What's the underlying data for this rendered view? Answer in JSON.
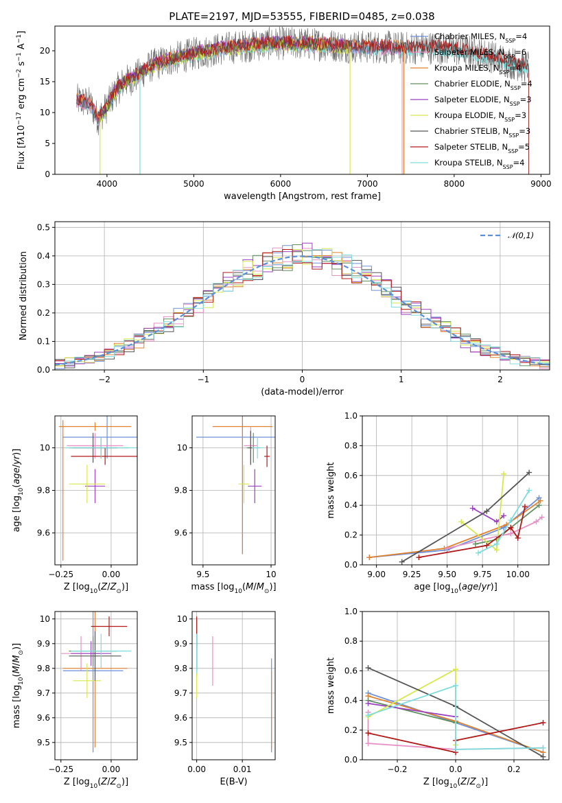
{
  "title": "PLATE=2197, MJD=53555, FIBERID=0485, z=0.038",
  "colors": {
    "Chabrier MILES": "#6e8fd8",
    "Salpeter MILES": "#e88fc5",
    "Kroupa MILES": "#e0812f",
    "Chabrier ELODIE": "#5f8f5f",
    "Salpeter ELODIE": "#9a40c0",
    "Kroupa ELODIE": "#d6e84a",
    "Chabrier STELIB": "#555555",
    "Salpeter STELIB": "#b01818",
    "Kroupa STELIB": "#7fdcdc"
  },
  "legend": [
    {
      "name": "Chabrier MILES",
      "nssp": "4"
    },
    {
      "name": "Salpeter MILES",
      "nssp": "6"
    },
    {
      "name": "Kroupa MILES",
      "nssp": "4"
    },
    {
      "name": "Chabrier ELODIE",
      "nssp": "4"
    },
    {
      "name": "Salpeter ELODIE",
      "nssp": "3"
    },
    {
      "name": "Kroupa ELODIE",
      "nssp": "3"
    },
    {
      "name": "Chabrier STELIB",
      "nssp": "3"
    },
    {
      "name": "Salpeter STELIB",
      "nssp": "5"
    },
    {
      "name": "Kroupa STELIB",
      "nssp": "4"
    }
  ],
  "chart_data": [
    {
      "id": "spectrum",
      "type": "line",
      "xlabel": "wavelength [Angstrom, rest frame]",
      "ylabel_html": "Flux [f<tspan font-style='italic'>λ</tspan>10<tspan baseline-shift='super' font-size='9'>−17</tspan> erg cm<tspan baseline-shift='super' font-size='9'>−2</tspan> s<tspan baseline-shift='super' font-size='9'>−1</tspan> A<tspan baseline-shift='super' font-size='9'>−1</tspan>]",
      "xlim": [
        3400,
        9100
      ],
      "ylim": [
        0,
        24
      ],
      "xticks": [
        4000,
        5000,
        6000,
        7000,
        8000,
        9000
      ],
      "yticks": [
        0,
        5,
        10,
        15,
        20
      ],
      "grid": false,
      "legend_position": "top-right",
      "continuum_x": [
        3650,
        3800,
        3900,
        4000,
        4100,
        4200,
        4300,
        4500,
        4700,
        5000,
        5300,
        5600,
        5900,
        6200,
        6500,
        6800,
        7000,
        7200,
        7400,
        7600,
        7800,
        8000,
        8200,
        8400,
        8600,
        8800
      ],
      "continuum_y": [
        12,
        11.5,
        9,
        11,
        13.5,
        15,
        15.5,
        17.5,
        18.5,
        19.5,
        20.3,
        20.8,
        21.2,
        21.2,
        21,
        20.7,
        20.6,
        20.6,
        20.4,
        20.5,
        20.5,
        20.2,
        19.8,
        19.2,
        18.3,
        17.5
      ],
      "model_ranges": {
        "Chabrier MILES": [
          3650,
          7400
        ],
        "Salpeter MILES": [
          3650,
          7400
        ],
        "Kroupa MILES": [
          3650,
          7400
        ],
        "Chabrier ELODIE": [
          3900,
          6800
        ],
        "Salpeter ELODIE": [
          3900,
          6800
        ],
        "Kroupa ELODIE": [
          3900,
          6800
        ],
        "Chabrier STELIB": [
          3650,
          8860
        ],
        "Salpeter STELIB": [
          3650,
          8860
        ],
        "Kroupa STELIB": [
          3650,
          8860
        ]
      }
    },
    {
      "id": "residuals",
      "type": "histogram",
      "xlabel": "(data-model)/error",
      "ylabel": "Normed distribution",
      "xlim": [
        -2.5,
        2.5
      ],
      "ylim": [
        0,
        0.52
      ],
      "xticks": [
        -2,
        -1,
        0,
        1,
        2
      ],
      "yticks": [
        0.0,
        0.1,
        0.2,
        0.3,
        0.4,
        0.5
      ],
      "grid": true,
      "legend_position": "top-right",
      "reference_curve": "𝒩(0,1)",
      "bin_width": 0.1
    },
    {
      "id": "age_vs_Z",
      "type": "scatter",
      "xlabel_html": "Z [log<tspan baseline-shift='sub' font-size='9'>10</tspan>(<tspan font-style='italic'>Z</tspan>/<tspan font-style='italic'>Z</tspan><tspan baseline-shift='sub' font-size='9'>⊙</tspan>)]",
      "ylabel_html": "age  [log<tspan baseline-shift='sub' font-size='9'>10</tspan>(<tspan font-style='italic'>age</tspan>/<tspan font-style='italic'>yr</tspan>)]",
      "xlim": [
        -0.28,
        0.13
      ],
      "ylim": [
        9.45,
        10.15
      ],
      "xticks": [
        -0.25,
        0.0
      ],
      "xtick_labels": [
        "−0.25",
        "0.00"
      ],
      "yticks": [
        9.6,
        9.8,
        10.0
      ],
      "grid": true,
      "points": [
        {
          "m": "Chabrier MILES",
          "x": -0.02,
          "xe": 0.22,
          "y": 10.05,
          "ye": 0.1
        },
        {
          "m": "Salpeter MILES",
          "x": -0.08,
          "xe": 0.14,
          "y": 10.01,
          "ye": 0.06
        },
        {
          "m": "Kroupa MILES",
          "x": -0.08,
          "xe": 0.18,
          "y": 10.1,
          "ye": 0.02
        },
        {
          "m": "Chabrier ELODIE",
          "x": -0.05,
          "xe": 0.14,
          "y": 10.0,
          "ye": 0.05
        },
        {
          "m": "Salpeter ELODIE",
          "x": -0.08,
          "xe": 0.05,
          "y": 9.82,
          "ye": 0.08
        },
        {
          "m": "Kroupa ELODIE",
          "x": -0.12,
          "xe": 0.09,
          "y": 9.83,
          "ye": 0.09
        },
        {
          "m": "Chabrier STELIB",
          "x": -0.09,
          "xe": 0.12,
          "y": 10.0,
          "ye": 0.07
        },
        {
          "m": "Salpeter STELIB",
          "x": -0.03,
          "xe": 0.17,
          "y": 9.96,
          "ye": 0.04
        },
        {
          "m": "Kroupa STELIB",
          "x": -0.05,
          "xe": 0.18,
          "y": 10.0,
          "ye": 0.05
        },
        {
          "m": "Kroupa MILES",
          "x": -0.24,
          "xe": 0.0,
          "y": 9.8,
          "ye": 0.33
        }
      ]
    },
    {
      "id": "age_vs_mass",
      "type": "scatter",
      "xlabel_html": "mass [log<tspan baseline-shift='sub' font-size='9'>10</tspan>(<tspan font-style='italic'>M</tspan>/<tspan font-style='italic'>M</tspan><tspan baseline-shift='sub' font-size='9'>⊙</tspan>)]",
      "xlim": [
        9.42,
        10.03
      ],
      "ylim": [
        9.45,
        10.15
      ],
      "xticks": [
        9.5,
        10.0
      ],
      "yticks": [
        9.6,
        9.8,
        10.0
      ],
      "grid": true,
      "points": [
        {
          "m": "Chabrier MILES",
          "x": 9.79,
          "xe": 0.34,
          "y": 10.05,
          "ye": 0.55
        },
        {
          "m": "Kroupa MILES",
          "x": 9.79,
          "xe": 0.22,
          "y": 10.1,
          "ye": 0.6
        },
        {
          "m": "Salpeter MILES",
          "x": 9.85,
          "xe": 0.05,
          "y": 10.01,
          "ye": 0.09
        },
        {
          "m": "Chabrier ELODIE",
          "x": 9.87,
          "xe": 0.05,
          "y": 10.0,
          "ye": 0.07
        },
        {
          "m": "Salpeter ELODIE",
          "x": 9.88,
          "xe": 0.05,
          "y": 9.82,
          "ye": 0.08
        },
        {
          "m": "Kroupa ELODIE",
          "x": 9.8,
          "xe": 0.04,
          "y": 9.83,
          "ye": 0.09
        },
        {
          "m": "Chabrier STELIB",
          "x": 9.85,
          "xe": 0.02,
          "y": 10.0,
          "ye": 0.08
        },
        {
          "m": "Salpeter STELIB",
          "x": 9.97,
          "xe": 0.02,
          "y": 9.96,
          "ye": 0.05
        },
        {
          "m": "Kroupa STELIB",
          "x": 9.9,
          "xe": 0.04,
          "y": 10.0,
          "ye": 0.05
        }
      ]
    },
    {
      "id": "mass_weight_vs_age",
      "type": "line",
      "xlabel_html": "age  [log<tspan baseline-shift='sub' font-size='9'>10</tspan>(<tspan font-style='italic'>age</tspan>/<tspan font-style='italic'>yr</tspan>)]",
      "ylabel": "mass weight",
      "xlim": [
        8.9,
        10.22
      ],
      "ylim": [
        0,
        1.0
      ],
      "xticks": [
        9.0,
        9.25,
        9.5,
        9.75,
        10.0
      ],
      "xtick_labels": [
        "9.00",
        "9.25",
        "9.50",
        "9.75",
        "10.00"
      ],
      "yticks": [
        0.0,
        0.2,
        0.4,
        0.6,
        0.8,
        1.0
      ],
      "grid": true,
      "series": [
        {
          "m": "Chabrier MILES",
          "x": [
            8.95,
            9.5,
            9.9,
            10.15
          ],
          "y": [
            0.05,
            0.1,
            0.25,
            0.45
          ]
        },
        {
          "m": "Kroupa MILES",
          "x": [
            8.95,
            9.48,
            9.92,
            10.16
          ],
          "y": [
            0.05,
            0.11,
            0.27,
            0.43
          ]
        },
        {
          "m": "Salpeter MILES",
          "x": [
            9.5,
            9.75,
            9.95,
            10.13,
            10.17
          ],
          "y": [
            0.11,
            0.17,
            0.21,
            0.29,
            0.32
          ]
        },
        {
          "m": "Chabrier ELODIE",
          "x": [
            9.7,
            9.85,
            9.95,
            10.15
          ],
          "y": [
            0.14,
            0.17,
            0.25,
            0.4
          ]
        },
        {
          "m": "Salpeter ELODIE",
          "x": [
            9.68,
            9.85,
            9.9
          ],
          "y": [
            0.38,
            0.29,
            0.33
          ]
        },
        {
          "m": "Kroupa ELODIE",
          "x": [
            9.6,
            9.85,
            9.9
          ],
          "y": [
            0.29,
            0.1,
            0.61
          ]
        },
        {
          "m": "Chabrier STELIB",
          "x": [
            9.18,
            9.78,
            10.08
          ],
          "y": [
            0.02,
            0.36,
            0.62
          ]
        },
        {
          "m": "Salpeter STELIB",
          "x": [
            9.3,
            9.78,
            9.95,
            10.0,
            10.05
          ],
          "y": [
            0.05,
            0.13,
            0.25,
            0.18,
            0.39
          ]
        },
        {
          "m": "Kroupa STELIB",
          "x": [
            9.72,
            9.85,
            9.95,
            10.08
          ],
          "y": [
            0.08,
            0.14,
            0.3,
            0.5
          ]
        }
      ]
    },
    {
      "id": "mass_vs_Z",
      "type": "scatter",
      "xlabel_html": "Z [log<tspan baseline-shift='sub' font-size='9'>10</tspan>(<tspan font-style='italic'>Z</tspan>/<tspan font-style='italic'>Z</tspan><tspan baseline-shift='sub' font-size='9'>⊙</tspan>)]",
      "ylabel_html": "mass [log<tspan baseline-shift='sub' font-size='9'>10</tspan>(<tspan font-style='italic'>M</tspan>/<tspan font-style='italic'>M</tspan><tspan baseline-shift='sub' font-size='9'>⊙</tspan>)]",
      "xlim": [
        -0.28,
        0.13
      ],
      "ylim": [
        9.43,
        10.03
      ],
      "xticks": [
        -0.25,
        0.0
      ],
      "xtick_labels": [
        "−0.25",
        "0.00"
      ],
      "yticks": [
        9.5,
        9.6,
        9.7,
        9.8,
        9.9,
        10.0
      ],
      "grid": true,
      "points": [
        {
          "m": "Chabrier MILES",
          "x": -0.09,
          "xe": 0.15,
          "y": 9.79,
          "ye": 0.33
        },
        {
          "m": "Kroupa MILES",
          "x": -0.08,
          "xe": 0.16,
          "y": 9.8,
          "ye": 0.32
        },
        {
          "m": "Salpeter MILES",
          "x": -0.15,
          "xe": 0.1,
          "y": 9.86,
          "ye": 0.07
        },
        {
          "m": "Chabrier ELODIE",
          "x": -0.09,
          "xe": 0.12,
          "y": 9.87,
          "ye": 0.06
        },
        {
          "m": "Salpeter ELODIE",
          "x": -0.1,
          "xe": 0.1,
          "y": 9.86,
          "ye": 0.05
        },
        {
          "m": "Kroupa ELODIE",
          "x": -0.12,
          "xe": 0.07,
          "y": 9.75,
          "ye": 0.07
        },
        {
          "m": "Chabrier STELIB",
          "x": -0.08,
          "xe": 0.13,
          "y": 9.85,
          "ye": 0.1
        },
        {
          "m": "Salpeter STELIB",
          "x": -0.01,
          "xe": 0.09,
          "y": 9.97,
          "ye": 0.04
        },
        {
          "m": "Kroupa STELIB",
          "x": -0.05,
          "xe": 0.15,
          "y": 9.87,
          "ye": 0.07
        }
      ]
    },
    {
      "id": "mass_vs_EBV",
      "type": "scatter",
      "xlabel": "E(B-V)",
      "xlim": [
        -0.001,
        0.0172
      ],
      "ylim": [
        9.43,
        10.03
      ],
      "xticks": [
        0.0,
        0.01
      ],
      "xtick_labels": [
        "0.00",
        "0.01"
      ],
      "yticks": [
        9.5,
        9.6,
        9.7,
        9.8,
        9.9,
        10.0
      ],
      "grid": true,
      "points": [
        {
          "m": "Chabrier MILES",
          "x": 0.0164,
          "xe": 0,
          "y": 9.65,
          "ye": 0.19
        },
        {
          "m": "Kroupa MILES",
          "x": 0.0164,
          "xe": 0,
          "y": 9.63,
          "ye": 0.16
        },
        {
          "m": "Salpeter MILES",
          "x": 0.0035,
          "xe": 0,
          "y": 9.83,
          "ye": 0.1
        },
        {
          "m": "Chabrier ELODIE",
          "x": 0.0,
          "xe": 0,
          "y": 9.85,
          "ye": 0.08
        },
        {
          "m": "Salpeter ELODIE",
          "x": 0.0,
          "xe": 0,
          "y": 9.85,
          "ye": 0.06
        },
        {
          "m": "Kroupa ELODIE",
          "x": 0.0,
          "xe": 0,
          "y": 9.78,
          "ye": 0.1
        },
        {
          "m": "Chabrier STELIB",
          "x": 0.0,
          "xe": 0,
          "y": 9.9,
          "ye": 0.1
        },
        {
          "m": "Salpeter STELIB",
          "x": 0.0,
          "xe": 0,
          "y": 9.95,
          "ye": 0.06
        },
        {
          "m": "Kroupa STELIB",
          "x": 0.0,
          "xe": 0,
          "y": 9.86,
          "ye": 0.08
        }
      ]
    },
    {
      "id": "mass_weight_vs_Z",
      "type": "line",
      "xlabel_html": "Z [log<tspan baseline-shift='sub' font-size='9'>10</tspan>(<tspan font-style='italic'>Z</tspan>/<tspan font-style='italic'>Z</tspan><tspan baseline-shift='sub' font-size='9'>⊙</tspan>)]",
      "ylabel": "mass weight",
      "xlim": [
        -0.32,
        0.32
      ],
      "ylim": [
        0,
        1.0
      ],
      "xticks": [
        -0.2,
        0.0,
        0.2
      ],
      "xtick_labels": [
        "−0.2",
        "0.0",
        "0.2"
      ],
      "yticks": [
        0.0,
        0.2,
        0.4,
        0.6,
        0.8,
        1.0
      ],
      "grid": true,
      "series": [
        {
          "m": "Chabrier MILES",
          "x": [
            -0.3,
            0.0,
            0.3
          ],
          "y": [
            0.45,
            0.25,
            0.05
          ]
        },
        {
          "m": "Kroupa MILES",
          "x": [
            -0.3,
            0.0,
            0.3
          ],
          "y": [
            0.43,
            0.26,
            0.05
          ]
        },
        {
          "m": "Salpeter MILES",
          "x": [
            -0.3,
            -0.3,
            0.0,
            0.3
          ],
          "y": [
            0.32,
            0.11,
            0.07,
            0.08
          ]
        },
        {
          "m": "Chabrier ELODIE",
          "x": [
            -0.3,
            0.0
          ],
          "y": [
            0.4,
            0.25
          ]
        },
        {
          "m": "Salpeter ELODIE",
          "x": [
            -0.3,
            0.0
          ],
          "y": [
            0.38,
            0.29
          ]
        },
        {
          "m": "Kroupa ELODIE",
          "x": [
            -0.3,
            0.0,
            0.0
          ],
          "y": [
            0.29,
            0.61,
            0.1
          ]
        },
        {
          "m": "Chabrier STELIB",
          "x": [
            -0.3,
            0.0,
            0.3
          ],
          "y": [
            0.62,
            0.36,
            0.02
          ]
        },
        {
          "m": "Salpeter STELIB",
          "x": [
            -0.3,
            0.0,
            0.0,
            0.3
          ],
          "y": [
            0.18,
            0.05,
            0.13,
            0.25
          ]
        },
        {
          "m": "Kroupa STELIB",
          "x": [
            -0.3,
            0.0,
            0.0,
            0.3
          ],
          "y": [
            0.3,
            0.5,
            0.07,
            0.08
          ]
        }
      ]
    }
  ]
}
